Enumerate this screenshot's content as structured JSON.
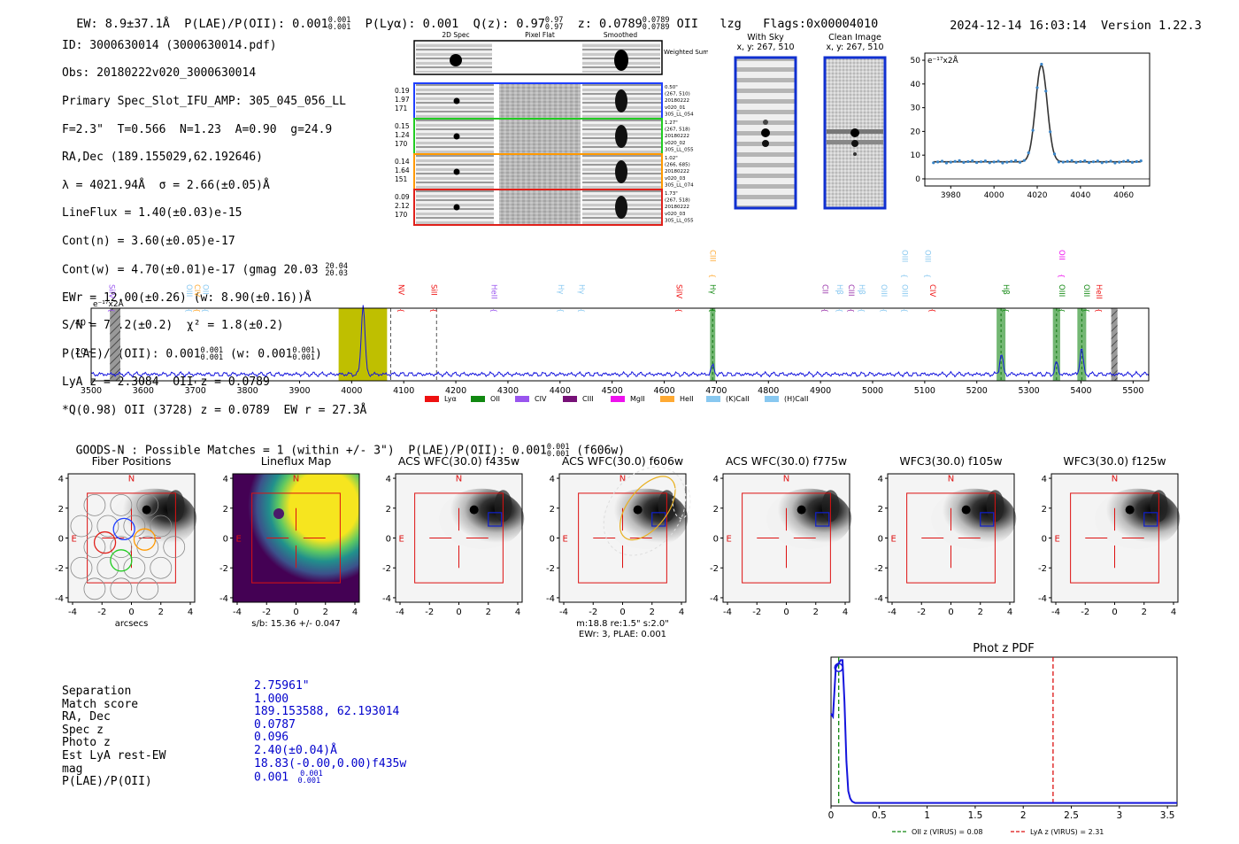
{
  "header": {
    "ew": "EW: 8.9±37.1Å",
    "plae": "P(LAE)/P(OII): 0.001",
    "plae_sup": "0.001",
    "plae_sub": "0.001",
    "plya": "P(Lyα): 0.001",
    "qz": "Q(z): 0.97",
    "qz_sup": "0.97",
    "qz_sub": "0.97",
    "z": "z: 0.0789",
    "z_sup": "0.0789",
    "z_sub": "0.0789",
    "z_line": "OII",
    "lzg": "lzg",
    "flags": "Flags:0x00004010",
    "datetime": "2024-12-14 16:03:14",
    "version": "Version 1.22.3"
  },
  "info": {
    "id": "ID: 3000630014 (3000630014.pdf)",
    "obs": "Obs: 20180222v020_3000630014",
    "primary": "Primary Spec_Slot_IFU_AMP: 305_045_056_LL",
    "fit": "F=2.3\"  T=0.566  N=1.23  A=0.90  g=24.9",
    "radec": "RA,Dec (189.155029,62.192646)",
    "lambda": "λ = 4021.94Å  σ = 2.66(±0.05)Å",
    "lineflux": "LineFlux = 1.40(±0.03)e-15",
    "contn": "Cont(n) = 3.60(±0.05)e-17",
    "contw": "Cont(w) = 4.70(±0.01)e-17 (gmag 20.03",
    "contw_sup": "20.04",
    "contw_sub": "20.03",
    "ewr": "EWr = 12.00(±0.26) (w: 8.90(±0.16))Å",
    "sn": "S/N = 70.2(±0.2)  χ² = 1.8(±0.2)",
    "plae": "P(LAE)/P(OII): 0.001",
    "plae_sup": "0.001",
    "plae_sub": "0.001",
    "plae_w": "(w: 0.001",
    "plae_w_sup": "0.001",
    "plae_w_sub": "0.001",
    "lya": "LyA z = 2.3084  OII z = 0.0789",
    "q": "*Q(0.98) OII (3728) z = 0.0789  EW r = 27.3Å"
  },
  "stamps": {
    "col_headers": [
      "2D Spec",
      "Pixel Flat",
      "Smoothed"
    ],
    "weighted_label": "Weighted Sum",
    "rows": [
      {
        "left": [
          "0.19",
          "1.97",
          "171"
        ],
        "right": [
          "0.50\"",
          "(267, 510)",
          "20180222",
          "v020_01",
          "305_LL_054"
        ],
        "color": "#1f3fff"
      },
      {
        "left": [
          "0.15",
          "1.24",
          "170"
        ],
        "right": [
          "1.27\"",
          "(267, 518)",
          "20180222",
          "v020_02",
          "305_LL_055"
        ],
        "color": "#22cc22"
      },
      {
        "left": [
          "0.14",
          "1.64",
          "151"
        ],
        "right": [
          "1.02\"",
          "(266, 685)",
          "20180222",
          "v020_03",
          "305_LL_074"
        ],
        "color": "#ff9900"
      },
      {
        "left": [
          "0.09",
          "2.12",
          "170"
        ],
        "right": [
          "1.73\"",
          "(267, 518)",
          "20180222",
          "v020_03",
          "305_LL_055"
        ],
        "color": "#e0201a"
      }
    ]
  },
  "sky": {
    "with_sky": "With Sky",
    "with_sky_xy": "x, y: 267, 510",
    "clean": "Clean Image",
    "clean_xy": "x, y: 267, 510"
  },
  "line_fit": {
    "unit": "e⁻¹⁷x2Å",
    "x_ticks": [
      3980,
      4000,
      4020,
      4040,
      4060
    ],
    "y_ticks": [
      0,
      10,
      20,
      30,
      40,
      50
    ],
    "xlim": [
      3968,
      4072
    ],
    "ylim": [
      -3,
      53
    ],
    "peak_center": 4021.94,
    "sigma": 2.66,
    "cont": 7.2,
    "peak": 48
  },
  "spectrum": {
    "unit": "e⁻¹⁷x2Å",
    "x_ticks": [
      3500,
      3600,
      3700,
      3800,
      3900,
      4000,
      4100,
      4200,
      4300,
      4400,
      4500,
      4600,
      4700,
      4800,
      4900,
      5000,
      5100,
      5200,
      5300,
      5400,
      5500
    ],
    "y_ticks": [
      20,
      40
    ],
    "xlim": [
      3500,
      5530
    ],
    "ylim": [
      0,
      50
    ],
    "line_labels": [
      {
        "t": "SiIV",
        "x": 3530,
        "c": "#9955ee",
        "row": 1
      },
      {
        "t": "OIII",
        "x": 3678,
        "c": "#88c8f0",
        "row": 1
      },
      {
        "t": "CIV",
        "x": 3694,
        "c": "#ffaa33",
        "row": 1
      },
      {
        "t": "OII",
        "x": 3710,
        "c": "#88c8f0",
        "row": 1
      },
      {
        "t": "NV",
        "x": 4085,
        "c": "#ee1111",
        "row": 1
      },
      {
        "t": "SiII",
        "x": 4148,
        "c": "#ee1111",
        "row": 1
      },
      {
        "t": "HeII",
        "x": 4264,
        "c": "#9955ee",
        "row": 1
      },
      {
        "t": "Hγ",
        "x": 4392,
        "c": "#88c8f0",
        "row": 1
      },
      {
        "t": "Hγ",
        "x": 4432,
        "c": "#88c8f0",
        "row": 1
      },
      {
        "t": "SiIV",
        "x": 4619,
        "c": "#ee1111",
        "row": 1
      },
      {
        "t": "CIII",
        "x": 4683,
        "c": "#ffaa33",
        "row": 0
      },
      {
        "t": "Hγ",
        "x": 4683,
        "c": "#118811",
        "row": 1
      },
      {
        "t": "CII",
        "x": 4899,
        "c": "#9933aa",
        "row": 1
      },
      {
        "t": "Hβ",
        "x": 4927,
        "c": "#88c8f0",
        "row": 1
      },
      {
        "t": "CIII",
        "x": 4949,
        "c": "#9933aa",
        "row": 1
      },
      {
        "t": "Hβ",
        "x": 4969,
        "c": "#88c8f0",
        "row": 1
      },
      {
        "t": "OIII",
        "x": 5012,
        "c": "#88c8f0",
        "row": 1
      },
      {
        "t": "OIII",
        "x": 5052,
        "c": "#88c8f0",
        "row": 0
      },
      {
        "t": "OIII",
        "x": 5052,
        "c": "#88c8f0",
        "row": 1
      },
      {
        "t": "OIII",
        "x": 5096,
        "c": "#88c8f0",
        "row": 0
      },
      {
        "t": "CIV",
        "x": 5105,
        "c": "#ee1111",
        "row": 1
      },
      {
        "t": "Hβ",
        "x": 5246,
        "c": "#118811",
        "row": 1
      },
      {
        "t": "OII",
        "x": 5353,
        "c": "#ee11ee",
        "row": 0
      },
      {
        "t": "OIII",
        "x": 5353,
        "c": "#118811",
        "row": 1
      },
      {
        "t": "OIII",
        "x": 5401,
        "c": "#118811",
        "row": 1
      },
      {
        "t": "HeII",
        "x": 5425,
        "c": "#ee1111",
        "row": 1
      }
    ],
    "legend": [
      {
        "t": "Lyα",
        "c": "#ee1111"
      },
      {
        "t": "OII",
        "c": "#118811"
      },
      {
        "t": "CIV",
        "c": "#9955ee"
      },
      {
        "t": "CIII",
        "c": "#771177"
      },
      {
        "t": "MgII",
        "c": "#ee11ee"
      },
      {
        "t": "HeII",
        "c": "#ffaa33"
      },
      {
        "t": "(K)CaII",
        "c": "#88c8f0"
      },
      {
        "t": "(H)CaII",
        "c": "#88c8f0"
      }
    ],
    "highlight_bands": [
      [
        4688,
        4698
      ],
      [
        5238,
        5255
      ],
      [
        5346,
        5360
      ],
      [
        5393,
        5410
      ]
    ],
    "yellow_band": [
      3975,
      4068
    ],
    "hatch_bands": [
      [
        3536,
        3556
      ],
      [
        5458,
        5470
      ]
    ],
    "dashed_lines": [
      4075,
      4163
    ],
    "peaks": [
      {
        "x": 4022,
        "a": 48,
        "s": 3.5
      },
      {
        "x": 4693,
        "a": 6,
        "s": 3
      },
      {
        "x": 5247,
        "a": 14,
        "s": 3
      },
      {
        "x": 5353,
        "a": 8,
        "s": 3
      },
      {
        "x": 5401,
        "a": 18,
        "s": 3
      }
    ]
  },
  "catalog": {
    "title": "GOODS-N : Possible Matches = 1 (within +/- 3\")  P(LAE)/P(OII): 0.001",
    "title_sup": "0.001",
    "title_sub": "0.001",
    "title_end": "(f606w)"
  },
  "cutouts": [
    {
      "title": "Fiber Positions",
      "xlabel": "arcsecs",
      "kind": "fibers"
    },
    {
      "title": "Lineflux Map",
      "xlabel": "s/b: 15.36 +/- 0.047",
      "kind": "map"
    },
    {
      "title": "ACS WFC(30.0) f435w",
      "xlabel": "",
      "kind": "img"
    },
    {
      "title": "ACS WFC(30.0) f606w",
      "xlabel": "m:18.8  re:1.5\"  s:2.0\"",
      "xlabel2": "EWr: 3, PLAE: 0.001",
      "kind": "img"
    },
    {
      "title": "ACS WFC(30.0) f775w",
      "xlabel": "",
      "kind": "img"
    },
    {
      "title": "WFC3(30.0) f105w",
      "xlabel": "",
      "kind": "img"
    },
    {
      "title": "WFC3(30.0) f125w",
      "xlabel": "",
      "kind": "img"
    }
  ],
  "cutout_ticks": [
    -4,
    -2,
    0,
    2,
    4
  ],
  "cutout_labels": {
    "north": "N",
    "east": "E"
  },
  "match_table": {
    "labels": [
      "Separation",
      "Match score",
      "RA, Dec",
      "Spec z",
      "Photo z",
      "Est LyA rest-EW",
      "mag",
      "P(LAE)/P(OII)"
    ],
    "values": [
      "2.75961\"",
      "1.000",
      "189.153588, 62.193014",
      "0.0787",
      "0.096",
      "2.40(±0.04)Å",
      "18.83(-0.00,0.00)f435w",
      "0.001"
    ],
    "plae_sup": "0.001",
    "plae_sub": "0.001"
  },
  "chart_data": {
    "type": "line",
    "title": "Phot z PDF",
    "xlabel": "",
    "ylabel": "",
    "xlim": [
      0,
      3.6
    ],
    "ylim": [
      0,
      1
    ],
    "x_ticks": [
      0.0,
      0.5,
      1.0,
      1.5,
      2.0,
      2.5,
      3.0,
      3.5
    ],
    "series": [
      {
        "name": "Phot z PDF",
        "x": [
          0.0,
          0.02,
          0.05,
          0.08,
          0.1,
          0.12,
          0.14,
          0.16,
          0.18,
          0.2,
          0.22,
          0.25,
          0.3,
          0.5,
          1.0,
          2.0,
          3.0,
          3.6
        ],
        "values": [
          0.62,
          0.6,
          0.93,
          0.96,
          0.98,
          0.98,
          0.7,
          0.3,
          0.1,
          0.05,
          0.03,
          0.02,
          0.02,
          0.02,
          0.02,
          0.02,
          0.02,
          0.02
        ]
      }
    ],
    "marker": {
      "x": 0.08,
      "y": 0.93
    },
    "vlines": [
      {
        "name": "OII z (VIRUS) = 0.08",
        "x": 0.08,
        "color": "#118811"
      },
      {
        "name": "LyA z (VIRUS) = 2.31",
        "x": 2.31,
        "color": "#dd1111"
      }
    ]
  }
}
